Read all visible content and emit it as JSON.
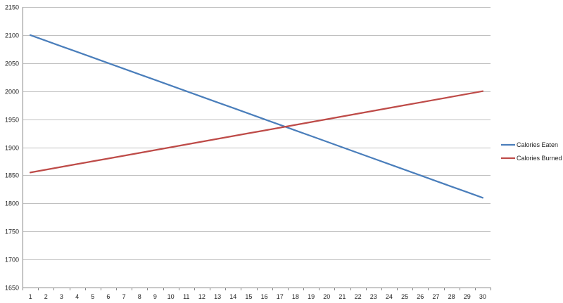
{
  "chart_data": {
    "type": "line",
    "x": [
      1,
      2,
      3,
      4,
      5,
      6,
      7,
      8,
      9,
      10,
      11,
      12,
      13,
      14,
      15,
      16,
      17,
      18,
      19,
      20,
      21,
      22,
      23,
      24,
      25,
      26,
      27,
      28,
      29,
      30
    ],
    "series": [
      {
        "name": "Calories Eaten",
        "color": "#4a7ebb",
        "values": [
          2100,
          2090,
          2080,
          2070,
          2060,
          2050,
          2040,
          2030,
          2020,
          2010,
          2000,
          1990,
          1980,
          1970,
          1960,
          1950,
          1940,
          1930,
          1920,
          1910,
          1900,
          1890,
          1880,
          1870,
          1860,
          1850,
          1840,
          1830,
          1820,
          1810
        ]
      },
      {
        "name": "Calories Burned",
        "color": "#be4b48",
        "values": [
          1855,
          1860,
          1865,
          1870,
          1875,
          1880,
          1885,
          1890,
          1895,
          1900,
          1905,
          1910,
          1915,
          1920,
          1925,
          1930,
          1935,
          1940,
          1945,
          1950,
          1955,
          1960,
          1965,
          1970,
          1975,
          1980,
          1985,
          1990,
          1995,
          2000
        ]
      }
    ],
    "ylim": [
      1650,
      2150
    ],
    "yticks": [
      1650,
      1700,
      1750,
      1800,
      1850,
      1900,
      1950,
      2000,
      2050,
      2100,
      2150
    ],
    "grid": true,
    "legend": "right"
  }
}
